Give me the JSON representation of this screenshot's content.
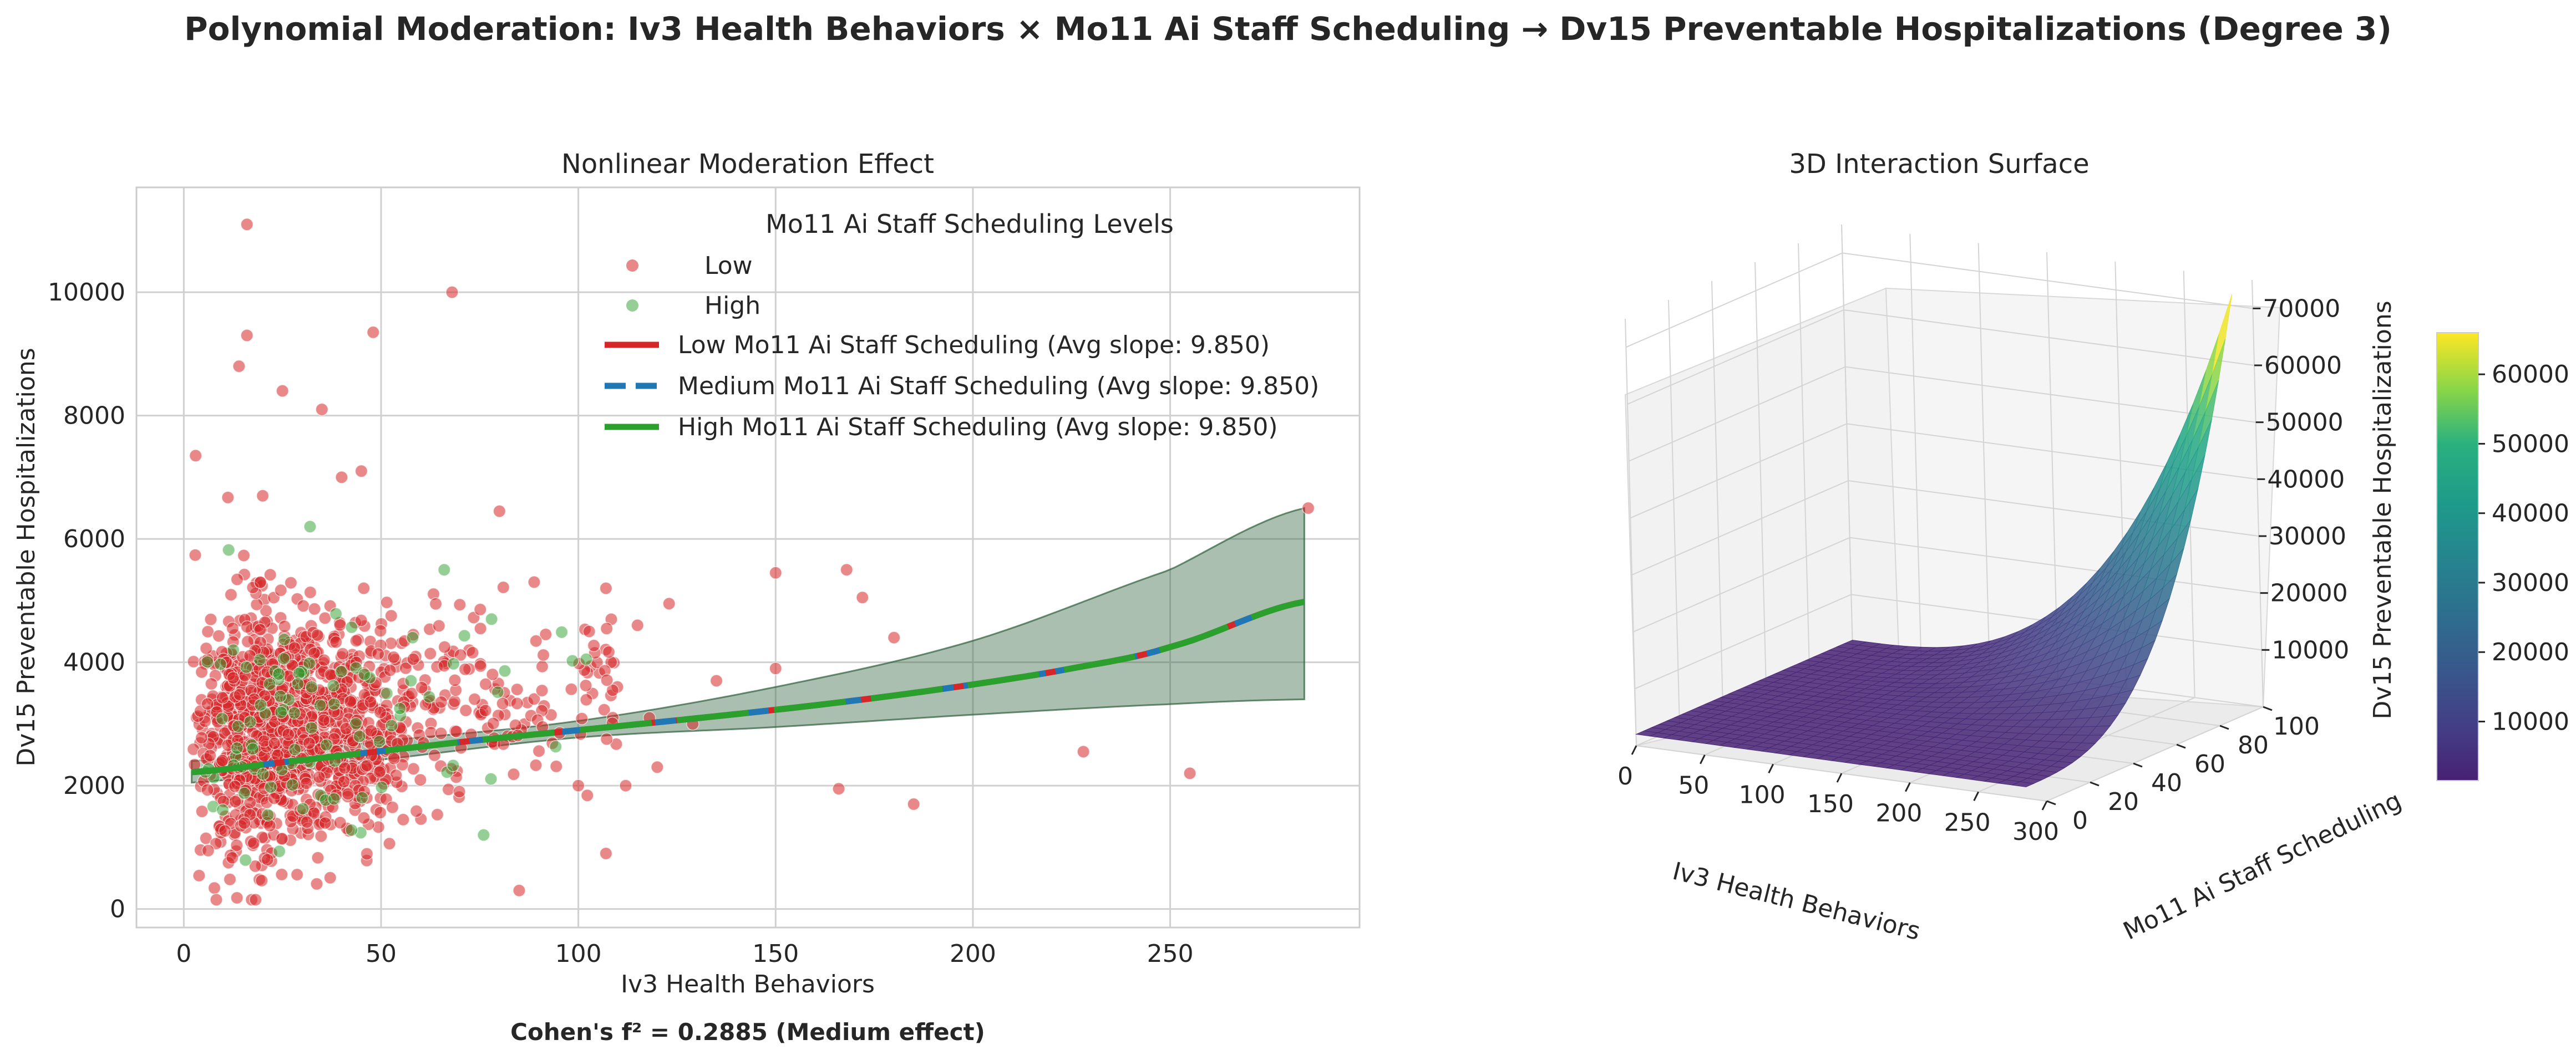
{
  "figure": {
    "title": "Polynomial Moderation: Iv3 Health Behaviors × Mo11 Ai Staff Scheduling → Dv15 Preventable Hospitalizations (Degree 3)",
    "effect_size": "Cohen's f² = 0.2885 (Medium effect)"
  },
  "colors": {
    "low": "#d62728",
    "medium": "#1f77b4",
    "high": "#2ca02c",
    "band": "#2e5e3a",
    "grid": "#d0d0d0",
    "axes_edge": "#cccccc",
    "surface_low": "#5b2a7a",
    "surface_high": "#fde725"
  },
  "chart_data": [
    {
      "type": "scatter",
      "title": "Nonlinear Moderation Effect",
      "xlabel": "Iv3 Health Behaviors",
      "ylabel": "Dv15 Preventable Hospitalizations",
      "xlim": [
        -12,
        298
      ],
      "ylim": [
        -300,
        11700
      ],
      "xticks": [
        "0",
        "50",
        "100",
        "150",
        "200",
        "250"
      ],
      "yticks": [
        "0",
        "2000",
        "4000",
        "6000",
        "8000",
        "10000"
      ],
      "legend": {
        "title": "Mo11 Ai Staff Scheduling Levels",
        "placement": "top-right",
        "entries": [
          "Low",
          "High",
          "Low Mo11 Ai Staff Scheduling (Avg slope: 9.850)",
          "Medium Mo11 Ai Staff Scheduling (Avg slope: 9.850)",
          "High Mo11 Ai Staff Scheduling (Avg slope: 9.850)"
        ]
      },
      "fit_curve": {
        "x": [
          2,
          25,
          50,
          75,
          100,
          125,
          150,
          175,
          200,
          225,
          250,
          284
        ],
        "y": [
          2220,
          2380,
          2560,
          2740,
          2900,
          3060,
          3230,
          3420,
          3640,
          3900,
          4250,
          4980
        ]
      },
      "confidence_band": {
        "x": [
          2,
          50,
          100,
          150,
          200,
          250,
          284
        ],
        "lower": [
          2050,
          2420,
          2780,
          2950,
          3150,
          3320,
          3400
        ],
        "upper": [
          2400,
          2720,
          3050,
          3600,
          4350,
          5500,
          6500
        ]
      },
      "outliers_low": [
        {
          "x": 16,
          "y": 11100
        },
        {
          "x": 68,
          "y": 10000
        },
        {
          "x": 48,
          "y": 9350
        },
        {
          "x": 16,
          "y": 9300
        },
        {
          "x": 14,
          "y": 8800
        },
        {
          "x": 25,
          "y": 8400
        },
        {
          "x": 35,
          "y": 8100
        },
        {
          "x": 3,
          "y": 7350
        },
        {
          "x": 40,
          "y": 7000
        },
        {
          "x": 20,
          "y": 6700
        },
        {
          "x": 45,
          "y": 7100
        },
        {
          "x": 80,
          "y": 6450
        },
        {
          "x": 285,
          "y": 6500
        },
        {
          "x": 150,
          "y": 5450
        },
        {
          "x": 168,
          "y": 5500
        },
        {
          "x": 172,
          "y": 5050
        },
        {
          "x": 180,
          "y": 4400
        },
        {
          "x": 135,
          "y": 3700
        },
        {
          "x": 115,
          "y": 4600
        },
        {
          "x": 123,
          "y": 4950
        },
        {
          "x": 107,
          "y": 5200
        },
        {
          "x": 228,
          "y": 2550
        },
        {
          "x": 255,
          "y": 2200
        },
        {
          "x": 166,
          "y": 1950
        },
        {
          "x": 185,
          "y": 1700
        },
        {
          "x": 85,
          "y": 300
        },
        {
          "x": 107,
          "y": 900
        },
        {
          "x": 100,
          "y": 2000
        },
        {
          "x": 112,
          "y": 2000
        },
        {
          "x": 120,
          "y": 2300
        },
        {
          "x": 129,
          "y": 3000
        },
        {
          "x": 118,
          "y": 3100
        },
        {
          "x": 150,
          "y": 3900
        }
      ],
      "outliers_high": [
        {
          "x": 32,
          "y": 6200
        },
        {
          "x": 66,
          "y": 5500
        },
        {
          "x": 78,
          "y": 4700
        },
        {
          "x": 76,
          "y": 1200
        },
        {
          "x": 102,
          "y": 4050
        },
        {
          "x": 58,
          "y": 4400
        }
      ],
      "dense_cloud": {
        "low_count": 1300,
        "high_count": 90,
        "x_range": [
          2,
          110
        ],
        "x_mode": 25,
        "y_center_at_x0": 2750,
        "y_slope": 7,
        "y_sd": 1050
      }
    },
    {
      "type": "surface3d",
      "title": "3D Interaction Surface",
      "xlabel": "Iv3 Health Behaviors",
      "ylabel": "Mo11 Ai Staff Scheduling",
      "zlabel": "Dv15 Preventable Hospitalizations",
      "xlim": [
        0,
        300
      ],
      "ylim": [
        0,
        100
      ],
      "zlim": [
        0,
        75000
      ],
      "xticks": [
        "0",
        "50",
        "100",
        "150",
        "200",
        "250",
        "300"
      ],
      "yticks": [
        "0",
        "20",
        "40",
        "60",
        "80",
        "100"
      ],
      "zticks": [
        "10000",
        "20000",
        "30000",
        "40000",
        "50000",
        "60000",
        "70000"
      ],
      "colorbar": {
        "label": "Dv15 Preventable Hospitalizations",
        "ticks": [
          "10000",
          "20000",
          "30000",
          "40000",
          "50000",
          "60000"
        ],
        "range": [
          1500,
          66000
        ]
      },
      "surface": {
        "x_max": 285,
        "y_max": 100,
        "z_floor": 2000,
        "z_peak": 72000,
        "exponent": 3
      }
    }
  ]
}
